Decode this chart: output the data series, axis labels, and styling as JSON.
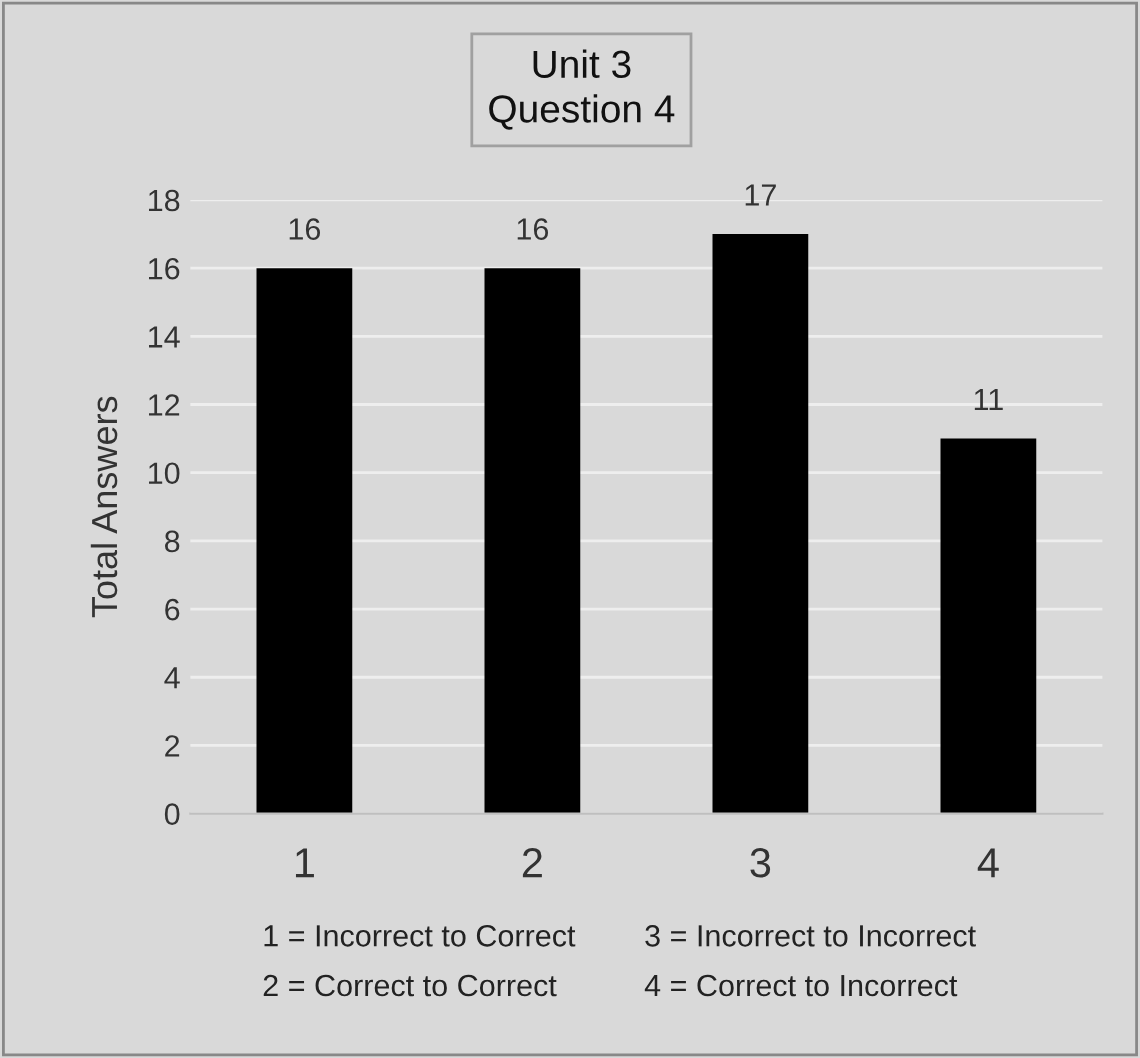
{
  "chart_data": {
    "type": "bar",
    "title": "Unit 3\nQuestion 4",
    "ylabel": "Total Answers",
    "categories": [
      "1",
      "2",
      "3",
      "4"
    ],
    "values": [
      16,
      16,
      17,
      11
    ],
    "color": "#000000",
    "ylim": [
      0,
      18
    ],
    "yticks": [
      0,
      2,
      4,
      6,
      8,
      10,
      12,
      14,
      16,
      18
    ],
    "grid": "y",
    "data_labels": true,
    "annotations": [
      "1 = Incorrect to Correct",
      "2 = Correct to Correct",
      "3 = Incorrect to Incorrect",
      "4 = Correct to Incorrect"
    ]
  }
}
